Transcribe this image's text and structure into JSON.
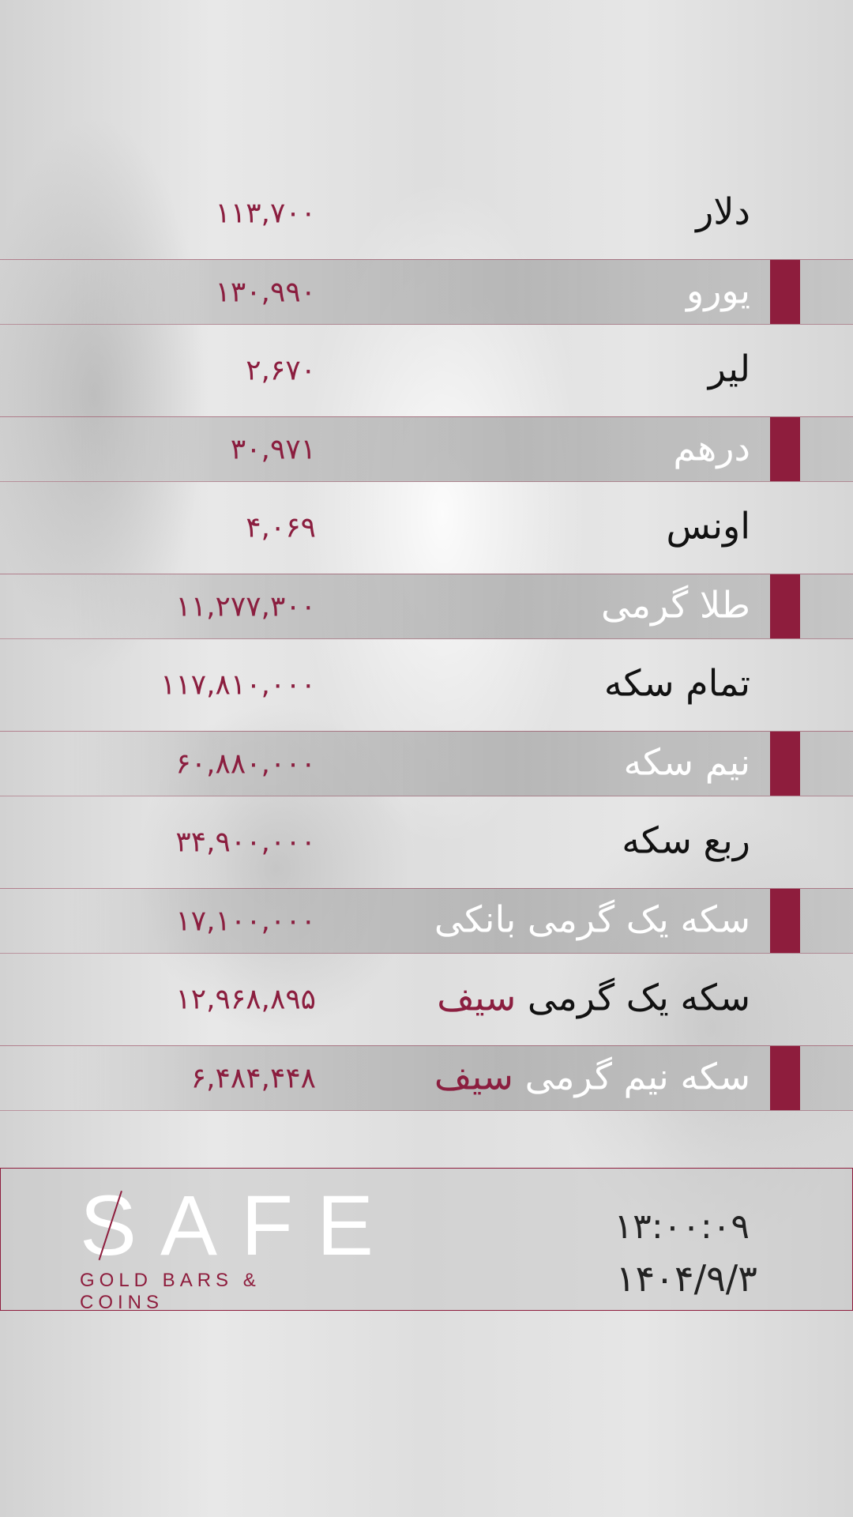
{
  "colors": {
    "accent": "#8e1d3d",
    "value_text": "#8b1e3f"
  },
  "rates": [
    {
      "label": "دلار",
      "highlight": "",
      "value": "۱۱۳,۷۰۰",
      "dark": false
    },
    {
      "label": "یورو",
      "highlight": "",
      "value": "۱۳۰,۹۹۰",
      "dark": true
    },
    {
      "label": "لیر",
      "highlight": "",
      "value": "۲,۶۷۰",
      "dark": false
    },
    {
      "label": "درهم",
      "highlight": "",
      "value": "۳۰,۹۷۱",
      "dark": true
    },
    {
      "label": "اونس",
      "highlight": "",
      "value": "۴,۰۶۹",
      "dark": false
    },
    {
      "label": "طلا گرمی",
      "highlight": "",
      "value": "۱۱,۲۷۷,۳۰۰",
      "dark": true
    },
    {
      "label": "تمام سکه",
      "highlight": "",
      "value": "۱۱۷,۸۱۰,۰۰۰",
      "dark": false
    },
    {
      "label": "نیم سکه",
      "highlight": "",
      "value": "۶۰,۸۸۰,۰۰۰",
      "dark": true
    },
    {
      "label": "ربع سکه",
      "highlight": "",
      "value": "۳۴,۹۰۰,۰۰۰",
      "dark": false
    },
    {
      "label": "سکه یک گرمی بانکی",
      "highlight": "",
      "value": "۱۷,۱۰۰,۰۰۰",
      "dark": true
    },
    {
      "label": "سکه یک گرمی",
      "highlight": "سیف",
      "value": "۱۲,۹۶۸,۸۹۵",
      "dark": false
    },
    {
      "label": "سکه نیم گرمی",
      "highlight": "سیف",
      "value": "۶,۴۸۴,۴۴۸",
      "dark": true
    }
  ],
  "footer": {
    "logo_word": "SAFE",
    "logo_sub": "GOLD BARS & COINS",
    "time": "۱۳:۰۰:۰۹",
    "date": "۱۴۰۴/۹/۳"
  }
}
